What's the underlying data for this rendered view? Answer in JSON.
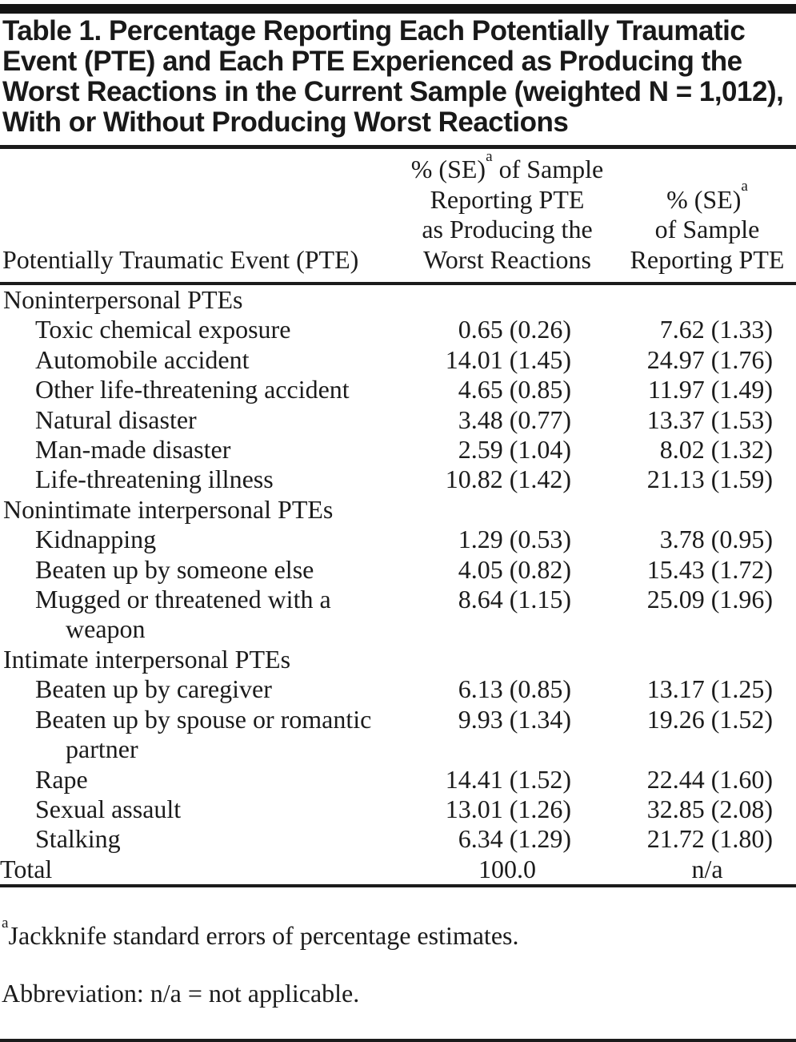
{
  "title": "Table 1. Percentage Reporting Each Potentially Traumatic\nEvent (PTE) and Each PTE Experienced as Producing the\nWorst Reactions in the Current Sample (weighted N = 1,012),\nWith or Without Producing Worst Reactions",
  "table": {
    "header": {
      "event_col": "Potentially Traumatic Event (PTE)",
      "worst_col": {
        "pre": "% (SE)",
        "sup": "a",
        "post": " of Sample\nReporting PTE\nas Producing the\nWorst Reactions"
      },
      "reported_col": {
        "pre": "% (SE)",
        "sup": "a",
        "post": "\nof Sample\nReporting PTE"
      }
    },
    "sections": [
      {
        "label": "Noninterpersonal PTEs",
        "rows": [
          {
            "label": "Toxic chemical exposure",
            "worst": "0.65 (0.26)",
            "reported": "7.62 (1.33)"
          },
          {
            "label": "Automobile accident",
            "worst": "14.01 (1.45)",
            "reported": "24.97 (1.76)"
          },
          {
            "label": "Other life-threatening accident",
            "worst": "4.65 (0.85)",
            "reported": "11.97 (1.49)"
          },
          {
            "label": "Natural disaster",
            "worst": "3.48 (0.77)",
            "reported": "13.37 (1.53)"
          },
          {
            "label": "Man-made disaster",
            "worst": "2.59 (1.04)",
            "reported": "8.02 (1.32)"
          },
          {
            "label": "Life-threatening illness",
            "worst": "10.82 (1.42)",
            "reported": "21.13 (1.59)"
          }
        ]
      },
      {
        "label": "Nonintimate interpersonal PTEs",
        "rows": [
          {
            "label": "Kidnapping",
            "worst": "1.29 (0.53)",
            "reported": "3.78 (0.95)"
          },
          {
            "label": "Beaten up by someone else",
            "worst": "4.05 (0.82)",
            "reported": "15.43 (1.72)"
          },
          {
            "label": "Mugged or threatened with a\nweapon",
            "worst": "8.64 (1.15)",
            "reported": "25.09 (1.96)"
          }
        ]
      },
      {
        "label": "Intimate interpersonal PTEs",
        "rows": [
          {
            "label": "Beaten up by caregiver",
            "worst": "6.13 (0.85)",
            "reported": "13.17 (1.25)"
          },
          {
            "label": "Beaten up by spouse or romantic\npartner",
            "worst": "9.93 (1.34)",
            "reported": "19.26 (1.52)"
          },
          {
            "label": "Rape",
            "worst": "14.41 (1.52)",
            "reported": "22.44 (1.60)"
          },
          {
            "label": "Sexual assault",
            "worst": "13.01 (1.26)",
            "reported": "32.85 (2.08)"
          },
          {
            "label": "Stalking",
            "worst": "6.34 (1.29)",
            "reported": "21.72 (1.80)"
          }
        ]
      }
    ],
    "total": {
      "label": "Total",
      "worst": "100.0",
      "reported": "n/a"
    }
  },
  "footnotes": {
    "a": {
      "sup": "a",
      "text": "Jackknife standard errors of percentage estimates."
    },
    "abbr": "Abbreviation: n/a = not applicable."
  }
}
